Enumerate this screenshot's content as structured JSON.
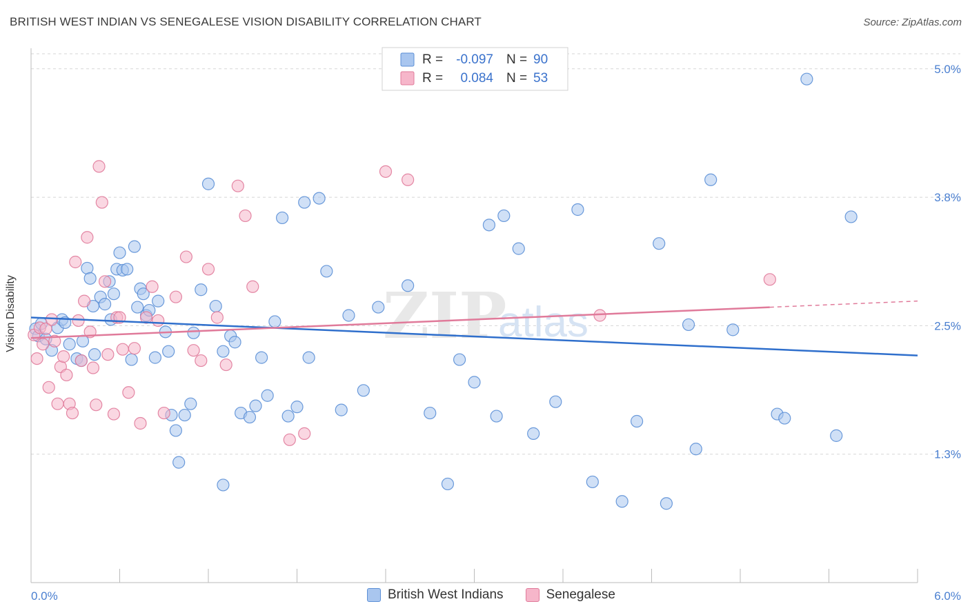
{
  "title": "BRITISH WEST INDIAN VS SENEGALESE VISION DISABILITY CORRELATION CHART",
  "source": "Source: ZipAtlas.com",
  "watermark": {
    "zip": "ZIP",
    "atlas": "atlas"
  },
  "chart_data": {
    "type": "scatter",
    "ylabel": "Vision Disability",
    "xlim": [
      0,
      6.0
    ],
    "ylim": [
      0.0,
      5.2
    ],
    "x_tick_labels": [
      {
        "value": 0,
        "label": "0.0%"
      },
      {
        "value": 6.0,
        "label": "6.0%"
      }
    ],
    "y_tick_labels": [
      {
        "value": 5.0,
        "label": "5.0%"
      },
      {
        "value": 3.75,
        "label": "3.8%"
      },
      {
        "value": 2.5,
        "label": "2.5%"
      },
      {
        "value": 1.25,
        "label": "1.3%"
      }
    ],
    "grid": "horizontal dashed",
    "legend_stats": [
      {
        "r_label": "R =",
        "r_value": "-0.097",
        "n_label": "N =",
        "n_value": "90"
      },
      {
        "r_label": "R =",
        "r_value": "0.084",
        "n_label": "N =",
        "n_value": "53"
      }
    ],
    "series": [
      {
        "name": "British West Indians",
        "color": "#5b8fd6",
        "fill": "#a9c6ef",
        "trend": {
          "x": [
            0,
            6.0
          ],
          "y": [
            2.58,
            2.21
          ]
        },
        "points": [
          [
            0.03,
            2.47
          ],
          [
            0.05,
            2.4
          ],
          [
            0.07,
            2.52
          ],
          [
            0.1,
            2.37
          ],
          [
            0.14,
            2.26
          ],
          [
            0.18,
            2.48
          ],
          [
            0.21,
            2.56
          ],
          [
            0.23,
            2.53
          ],
          [
            0.26,
            2.32
          ],
          [
            0.31,
            2.18
          ],
          [
            0.34,
            2.16
          ],
          [
            0.35,
            2.35
          ],
          [
            0.38,
            3.06
          ],
          [
            0.4,
            2.96
          ],
          [
            0.42,
            2.69
          ],
          [
            0.43,
            2.22
          ],
          [
            0.47,
            2.78
          ],
          [
            0.5,
            2.71
          ],
          [
            0.53,
            2.93
          ],
          [
            0.54,
            2.56
          ],
          [
            0.56,
            2.81
          ],
          [
            0.58,
            3.05
          ],
          [
            0.6,
            3.21
          ],
          [
            0.62,
            3.04
          ],
          [
            0.65,
            3.05
          ],
          [
            0.68,
            2.17
          ],
          [
            0.7,
            3.27
          ],
          [
            0.72,
            2.68
          ],
          [
            0.74,
            2.86
          ],
          [
            0.76,
            2.81
          ],
          [
            0.78,
            2.6
          ],
          [
            0.8,
            2.65
          ],
          [
            0.84,
            2.19
          ],
          [
            0.86,
            2.74
          ],
          [
            0.91,
            2.44
          ],
          [
            0.93,
            2.25
          ],
          [
            0.95,
            1.63
          ],
          [
            0.98,
            1.48
          ],
          [
            1.0,
            1.17
          ],
          [
            1.04,
            1.63
          ],
          [
            1.08,
            1.74
          ],
          [
            1.1,
            2.43
          ],
          [
            1.15,
            2.85
          ],
          [
            1.2,
            3.88
          ],
          [
            1.25,
            2.69
          ],
          [
            1.3,
            2.25
          ],
          [
            1.35,
            2.4
          ],
          [
            1.38,
            2.34
          ],
          [
            1.42,
            1.65
          ],
          [
            1.48,
            1.61
          ],
          [
            1.52,
            1.72
          ],
          [
            1.56,
            2.19
          ],
          [
            1.6,
            1.82
          ],
          [
            1.65,
            2.54
          ],
          [
            1.7,
            3.55
          ],
          [
            1.74,
            1.62
          ],
          [
            1.8,
            1.71
          ],
          [
            1.85,
            3.7
          ],
          [
            1.88,
            2.19
          ],
          [
            1.95,
            3.74
          ],
          [
            2.0,
            3.03
          ],
          [
            2.1,
            1.68
          ],
          [
            2.15,
            2.6
          ],
          [
            2.25,
            1.87
          ],
          [
            2.35,
            2.68
          ],
          [
            2.55,
            2.89
          ],
          [
            2.7,
            1.65
          ],
          [
            2.82,
            0.96
          ],
          [
            2.9,
            2.17
          ],
          [
            3.0,
            1.95
          ],
          [
            3.1,
            3.48
          ],
          [
            3.15,
            1.62
          ],
          [
            3.2,
            3.57
          ],
          [
            3.3,
            3.25
          ],
          [
            3.4,
            1.45
          ],
          [
            3.55,
            1.76
          ],
          [
            3.7,
            3.63
          ],
          [
            3.8,
            0.98
          ],
          [
            4.0,
            0.79
          ],
          [
            4.1,
            1.57
          ],
          [
            4.25,
            3.3
          ],
          [
            4.3,
            0.77
          ],
          [
            4.45,
            2.51
          ],
          [
            4.5,
            1.3
          ],
          [
            4.6,
            3.92
          ],
          [
            5.05,
            1.64
          ],
          [
            5.1,
            1.6
          ],
          [
            5.25,
            4.9
          ],
          [
            5.45,
            1.43
          ],
          [
            5.55,
            3.56
          ],
          [
            4.75,
            2.46
          ],
          [
            1.3,
            0.95
          ]
        ]
      },
      {
        "name": "Senegalese",
        "color": "#e07a9a",
        "fill": "#f6b6ca",
        "trend": {
          "x": [
            0,
            5.0
          ],
          "y": [
            2.38,
            2.68
          ],
          "dash_x": [
            5.0,
            6.0
          ],
          "dash_y": [
            2.68,
            2.74
          ]
        },
        "points": [
          [
            0.02,
            2.41
          ],
          [
            0.04,
            2.18
          ],
          [
            0.06,
            2.48
          ],
          [
            0.08,
            2.32
          ],
          [
            0.1,
            2.47
          ],
          [
            0.12,
            1.9
          ],
          [
            0.14,
            2.56
          ],
          [
            0.16,
            2.35
          ],
          [
            0.18,
            1.74
          ],
          [
            0.2,
            2.1
          ],
          [
            0.22,
            2.2
          ],
          [
            0.24,
            2.02
          ],
          [
            0.26,
            1.74
          ],
          [
            0.28,
            1.65
          ],
          [
            0.3,
            3.12
          ],
          [
            0.32,
            2.55
          ],
          [
            0.34,
            2.16
          ],
          [
            0.36,
            2.74
          ],
          [
            0.38,
            3.36
          ],
          [
            0.4,
            2.44
          ],
          [
            0.42,
            2.09
          ],
          [
            0.44,
            1.73
          ],
          [
            0.46,
            4.05
          ],
          [
            0.48,
            3.7
          ],
          [
            0.5,
            2.93
          ],
          [
            0.52,
            2.22
          ],
          [
            0.56,
            1.64
          ],
          [
            0.58,
            2.58
          ],
          [
            0.6,
            2.58
          ],
          [
            0.62,
            2.27
          ],
          [
            0.66,
            1.85
          ],
          [
            0.7,
            2.28
          ],
          [
            0.74,
            1.55
          ],
          [
            0.78,
            2.58
          ],
          [
            0.82,
            2.88
          ],
          [
            0.86,
            2.55
          ],
          [
            0.9,
            1.65
          ],
          [
            0.98,
            2.78
          ],
          [
            1.05,
            3.17
          ],
          [
            1.1,
            2.26
          ],
          [
            1.15,
            2.16
          ],
          [
            1.2,
            3.05
          ],
          [
            1.26,
            2.58
          ],
          [
            1.32,
            2.12
          ],
          [
            1.4,
            3.86
          ],
          [
            1.45,
            3.57
          ],
          [
            1.5,
            2.88
          ],
          [
            1.75,
            1.39
          ],
          [
            1.85,
            1.45
          ],
          [
            2.4,
            4.0
          ],
          [
            2.55,
            3.92
          ],
          [
            3.85,
            2.6
          ],
          [
            5.0,
            2.95
          ]
        ]
      }
    ]
  },
  "legend_bottom": [
    {
      "label": "British West Indians",
      "color": "#5b8fd6",
      "fill": "#a9c6ef"
    },
    {
      "label": "Senegalese",
      "color": "#e07a9a",
      "fill": "#f6b6ca"
    }
  ]
}
